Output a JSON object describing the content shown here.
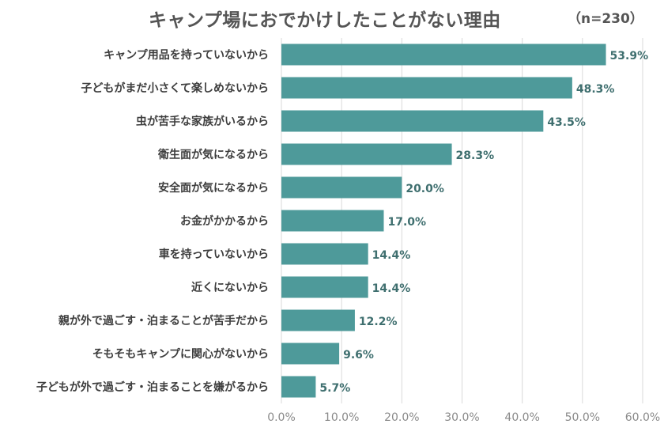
{
  "chart_data": {
    "type": "bar",
    "orientation": "horizontal",
    "title": "キャンプ場におでかけしたことがない理由",
    "note": "（n=230）",
    "categories": [
      "キャンプ用品を持っていないから",
      "子どもがまだ小さくて楽しめないから",
      "虫が苦手な家族がいるから",
      "衛生面が気になるから",
      "安全面が気になるから",
      "お金がかかるから",
      "車を持っていないから",
      "近くにないから",
      "親が外で過ごす・泊まることが苦手だから",
      "そもそもキャンプに関心がないから",
      "子どもが外で過ごす・泊まることを嫌がるから"
    ],
    "values": [
      53.9,
      48.3,
      43.5,
      28.3,
      20.0,
      17.0,
      14.4,
      14.4,
      12.2,
      9.6,
      5.7
    ],
    "value_labels": [
      "53.9%",
      "48.3%",
      "43.5%",
      "28.3%",
      "20.0%",
      "17.0%",
      "14.4%",
      "14.4%",
      "12.2%",
      "9.6%",
      "5.7%"
    ],
    "xlim": [
      0,
      60
    ],
    "xticks": [
      "0.0%",
      "10.0%",
      "20.0%",
      "30.0%",
      "40.0%",
      "50.0%",
      "60.0%"
    ],
    "grid": true,
    "legend": "none",
    "bar_color": "#4e9a9a"
  }
}
